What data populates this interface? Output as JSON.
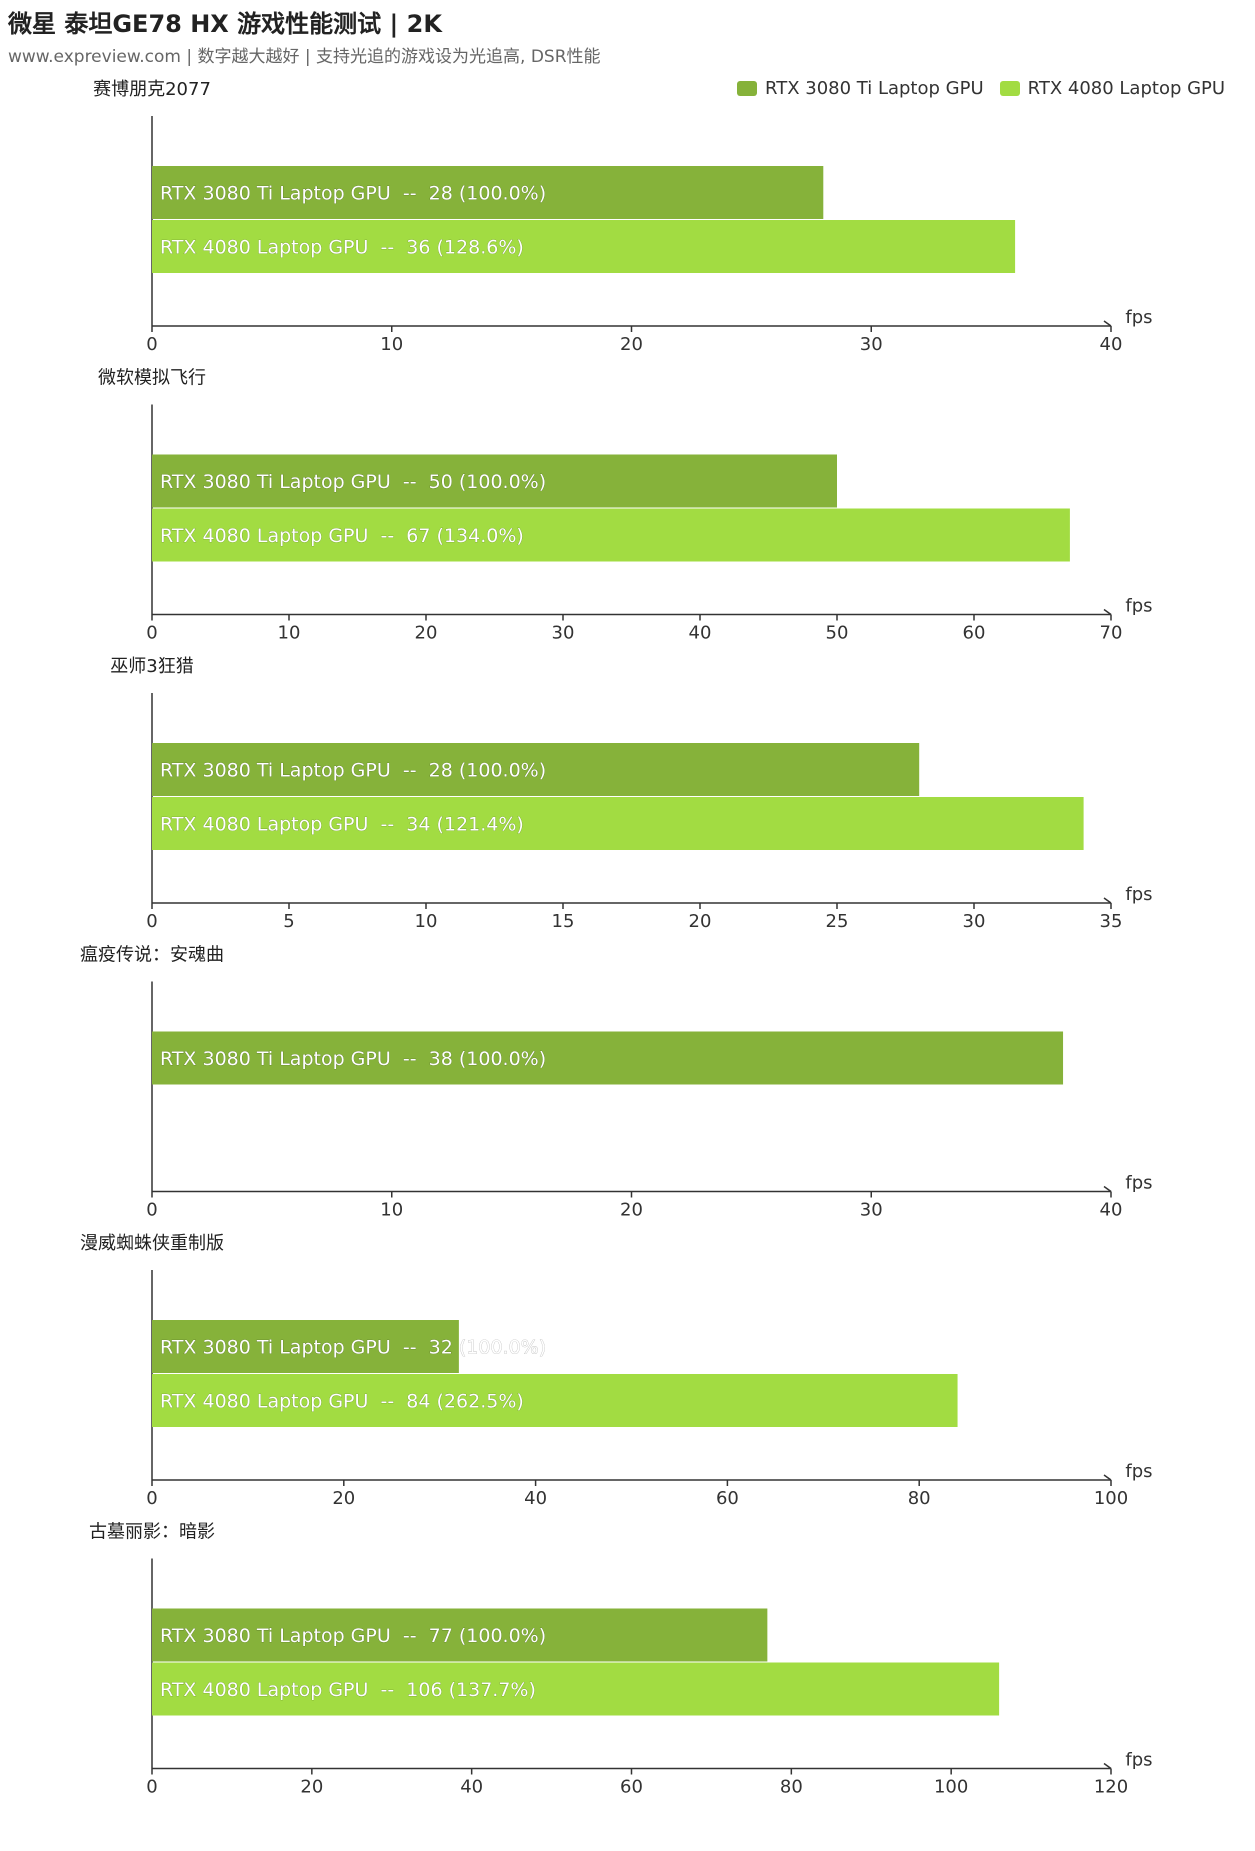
{
  "header": {
    "title": "微星 泰坦GE78 HX 游戏性能测试 | 2K",
    "subtitle": "www.expreview.com | 数字越大越好 | 支持光追的游戏设为光追高, DSR性能"
  },
  "colors": {
    "rtx3080ti": "#86b23a",
    "rtx4080": "#a2dc42",
    "axis": "#333333",
    "bar_text": "#ffffff"
  },
  "legend": {
    "items": [
      {
        "label": "RTX 3080 Ti Laptop GPU",
        "color": "#86b23a"
      },
      {
        "label": "RTX 4080 Laptop GPU",
        "color": "#a2dc42"
      }
    ]
  },
  "chart_data": [
    {
      "type": "bar",
      "orientation": "horizontal",
      "title": "赛博朋克2077",
      "unit": "fps",
      "xlim": [
        0,
        40
      ],
      "ticks": [
        0,
        10,
        20,
        30,
        40
      ],
      "series": [
        {
          "name": "RTX 3080 Ti Laptop GPU",
          "value": 28,
          "label": "RTX 3080 Ti Laptop GPU  --  28 (100.0%)"
        },
        {
          "name": "RTX 4080 Laptop GPU",
          "value": 36,
          "label": "RTX 4080 Laptop GPU  --  36 (128.6%)"
        }
      ]
    },
    {
      "type": "bar",
      "orientation": "horizontal",
      "title": "微软模拟飞行",
      "unit": "fps",
      "xlim": [
        0,
        70
      ],
      "ticks": [
        0,
        10,
        20,
        30,
        40,
        50,
        60,
        70
      ],
      "series": [
        {
          "name": "RTX 3080 Ti Laptop GPU",
          "value": 50,
          "label": "RTX 3080 Ti Laptop GPU  --  50 (100.0%)"
        },
        {
          "name": "RTX 4080 Laptop GPU",
          "value": 67,
          "label": "RTX 4080 Laptop GPU  --  67 (134.0%)"
        }
      ]
    },
    {
      "type": "bar",
      "orientation": "horizontal",
      "title": "巫师3狂猎",
      "unit": "fps",
      "xlim": [
        0,
        35
      ],
      "ticks": [
        0,
        5,
        10,
        15,
        20,
        25,
        30,
        35
      ],
      "series": [
        {
          "name": "RTX 3080 Ti Laptop GPU",
          "value": 28,
          "label": "RTX 3080 Ti Laptop GPU  --  28 (100.0%)"
        },
        {
          "name": "RTX 4080 Laptop GPU",
          "value": 34,
          "label": "RTX 4080 Laptop GPU  --  34 (121.4%)"
        }
      ]
    },
    {
      "type": "bar",
      "orientation": "horizontal",
      "title": "瘟疫传说：安魂曲",
      "unit": "fps",
      "xlim": [
        0,
        40
      ],
      "ticks": [
        0,
        10,
        20,
        30,
        40
      ],
      "series": [
        {
          "name": "RTX 3080 Ti Laptop GPU",
          "value": 38,
          "label": "RTX 3080 Ti Laptop GPU  --  38 (100.0%)"
        }
      ]
    },
    {
      "type": "bar",
      "orientation": "horizontal",
      "title": "漫威蜘蛛侠重制版",
      "unit": "fps",
      "xlim": [
        0,
        100
      ],
      "ticks": [
        0,
        20,
        40,
        60,
        80,
        100
      ],
      "series": [
        {
          "name": "RTX 3080 Ti Laptop GPU",
          "value": 32,
          "label": "RTX 3080 Ti Laptop GPU  --  32 (100.0%)"
        },
        {
          "name": "RTX 4080 Laptop GPU",
          "value": 84,
          "label": "RTX 4080 Laptop GPU  --  84 (262.5%)"
        }
      ]
    },
    {
      "type": "bar",
      "orientation": "horizontal",
      "title": "古墓丽影：暗影",
      "unit": "fps",
      "xlim": [
        0,
        120
      ],
      "ticks": [
        0,
        20,
        40,
        60,
        80,
        100,
        120
      ],
      "series": [
        {
          "name": "RTX 3080 Ti Laptop GPU",
          "value": 77,
          "label": "RTX 3080 Ti Laptop GPU  --  77 (100.0%)"
        },
        {
          "name": "RTX 4080 Laptop GPU",
          "value": 106,
          "label": "RTX 4080 Laptop GPU  --  106 (137.7%)"
        }
      ]
    }
  ]
}
